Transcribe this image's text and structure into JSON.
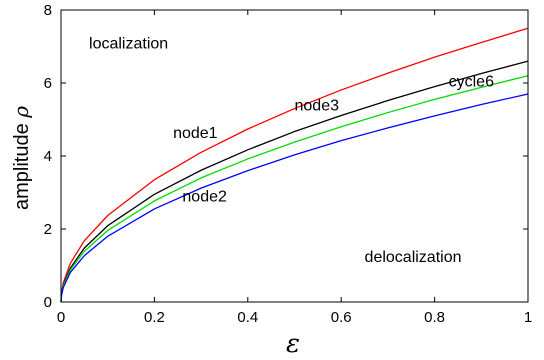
{
  "chart_data": {
    "type": "line",
    "xlabel": "ε",
    "ylabel_text": "amplitude ",
    "ylabel_symbol": "ρ",
    "xlim": [
      0,
      1
    ],
    "ylim": [
      0,
      8
    ],
    "xticks": [
      0,
      0.2,
      0.4,
      0.6,
      0.8,
      1
    ],
    "xtick_labels": [
      "0",
      "0.2",
      "0.4",
      "0.6",
      "0.8",
      "1"
    ],
    "yticks": [
      0,
      2,
      4,
      6,
      8
    ],
    "ytick_labels": [
      "0",
      "2",
      "4",
      "6",
      "8"
    ],
    "grid": false,
    "series": [
      {
        "name": "node1",
        "color": "#ff0000",
        "x": [
          0,
          0.001,
          0.005,
          0.02,
          0.05,
          0.1,
          0.2,
          0.3,
          0.4,
          0.5,
          0.6,
          0.7,
          0.8,
          0.9,
          1.0
        ],
        "y": [
          0,
          0.24,
          0.53,
          1.06,
          1.68,
          2.37,
          3.35,
          4.1,
          4.74,
          5.3,
          5.81,
          6.27,
          6.71,
          7.11,
          7.5
        ]
      },
      {
        "name": "node3",
        "color": "#000000",
        "x": [
          0,
          0.001,
          0.005,
          0.02,
          0.05,
          0.1,
          0.2,
          0.3,
          0.4,
          0.5,
          0.6,
          0.7,
          0.8,
          0.9,
          1.0
        ],
        "y": [
          0,
          0.21,
          0.47,
          0.93,
          1.48,
          2.09,
          2.95,
          3.61,
          4.17,
          4.67,
          5.11,
          5.52,
          5.9,
          6.26,
          6.6
        ]
      },
      {
        "name": "cycle6",
        "color": "#00dd00",
        "x": [
          0,
          0.001,
          0.005,
          0.02,
          0.05,
          0.1,
          0.2,
          0.3,
          0.4,
          0.5,
          0.6,
          0.7,
          0.8,
          0.9,
          1.0
        ],
        "y": [
          0,
          0.2,
          0.44,
          0.88,
          1.39,
          1.96,
          2.77,
          3.4,
          3.92,
          4.38,
          4.8,
          5.19,
          5.55,
          5.88,
          6.2
        ]
      },
      {
        "name": "node2",
        "color": "#0000ff",
        "x": [
          0,
          0.001,
          0.005,
          0.02,
          0.05,
          0.1,
          0.2,
          0.3,
          0.4,
          0.5,
          0.6,
          0.7,
          0.8,
          0.9,
          1.0
        ],
        "y": [
          0,
          0.18,
          0.4,
          0.81,
          1.27,
          1.8,
          2.55,
          3.12,
          3.6,
          4.03,
          4.42,
          4.77,
          5.1,
          5.41,
          5.7
        ]
      }
    ],
    "annotations": [
      {
        "text": "localization",
        "x": 0.06,
        "y": 6.95
      },
      {
        "text": "delocalization",
        "x": 0.65,
        "y": 1.1
      },
      {
        "text": "node1",
        "x": 0.24,
        "y": 4.5
      },
      {
        "text": "node2",
        "x": 0.26,
        "y": 2.75
      },
      {
        "text": "node3",
        "x": 0.5,
        "y": 5.25
      },
      {
        "text": "cycle6",
        "x": 0.83,
        "y": 5.9
      }
    ]
  }
}
